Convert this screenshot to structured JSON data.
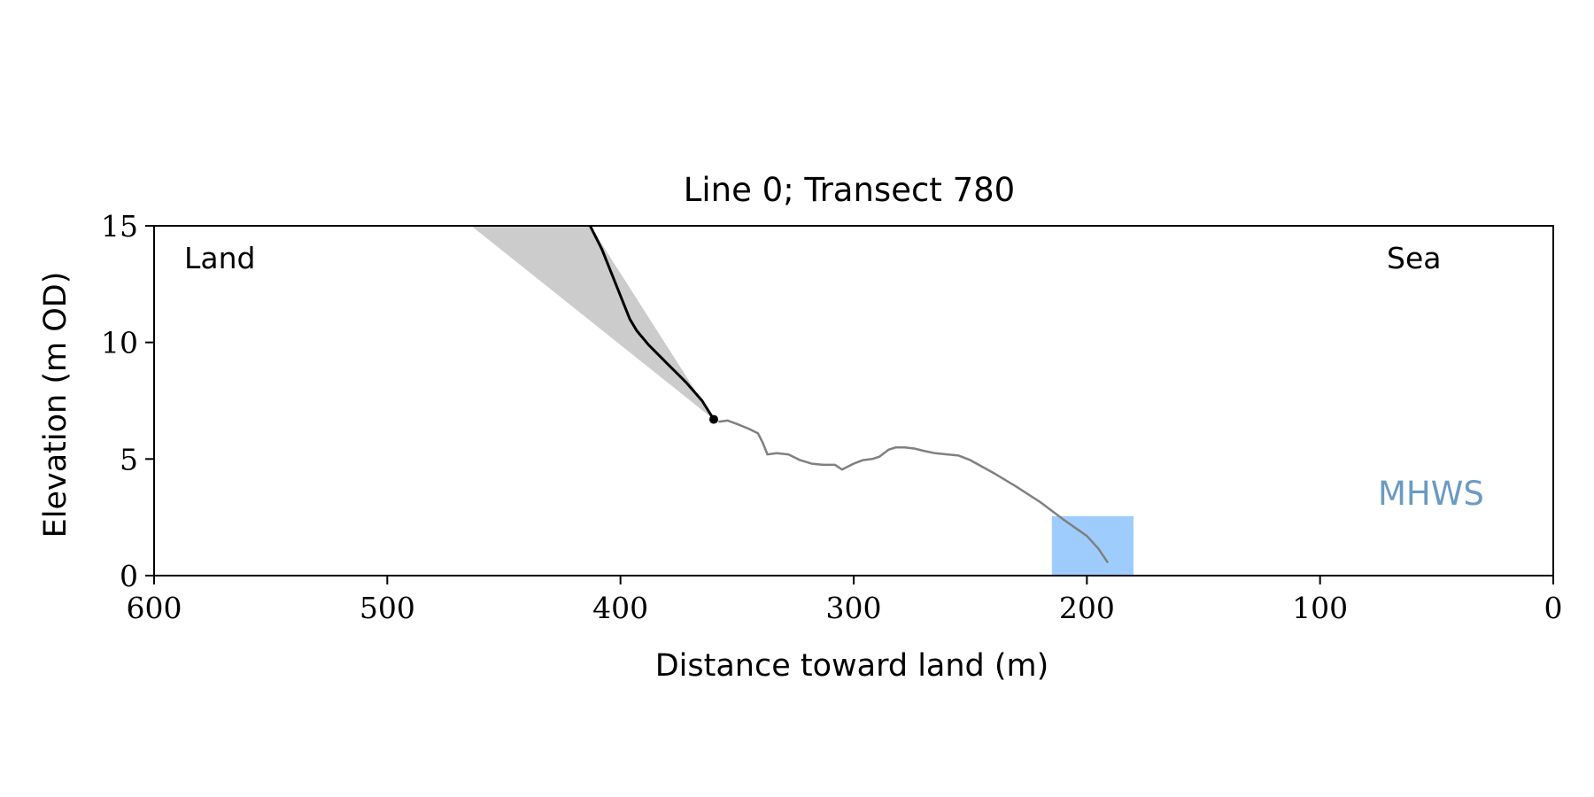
{
  "chart_data": {
    "type": "line",
    "title": "Line 0; Transect 780",
    "xlabel": "Distance toward land (m)",
    "ylabel": "Elevation (m OD)",
    "xlim": [
      600,
      0
    ],
    "ylim": [
      0,
      15
    ],
    "x_ticks": [
      600,
      500,
      400,
      300,
      200,
      100,
      0
    ],
    "y_ticks": [
      0,
      5,
      10,
      15
    ],
    "grid": false,
    "annotations": {
      "land_label": "Land",
      "sea_label": "Sea",
      "mhws_label": "MHWS"
    },
    "colors": {
      "profile": "#808080",
      "cliff": "#000000",
      "slope_fill": "#cccccc",
      "mhws_fill": "#9ecdfd",
      "mhws_text": "#6b9ac4",
      "axes": "#000000"
    },
    "series": [
      {
        "role": "profile",
        "x": [
          358,
          354,
          350,
          345,
          341,
          339,
          337,
          333,
          328,
          325,
          323,
          318,
          313,
          308,
          305,
          302,
          300,
          296,
          292,
          289,
          285,
          282,
          278,
          274,
          270,
          265,
          260,
          255,
          250,
          240,
          230,
          220,
          210,
          200,
          195,
          191
        ],
        "y": [
          6.6,
          6.65,
          6.5,
          6.3,
          6.1,
          5.7,
          5.2,
          5.25,
          5.2,
          5.05,
          4.95,
          4.8,
          4.75,
          4.75,
          4.55,
          4.7,
          4.8,
          4.95,
          5.0,
          5.1,
          5.4,
          5.5,
          5.5,
          5.45,
          5.35,
          5.25,
          5.2,
          5.15,
          4.95,
          4.4,
          3.8,
          3.15,
          2.4,
          1.7,
          1.15,
          0.55
        ]
      },
      {
        "role": "cliff",
        "x": [
          413,
          408,
          402,
          396,
          393,
          388,
          380,
          372,
          365,
          360
        ],
        "y": [
          15,
          14,
          12.5,
          11,
          10.5,
          9.9,
          9.1,
          8.3,
          7.5,
          6.7
        ]
      },
      {
        "role": "slope_wedge",
        "x": [
          464,
          413,
          360
        ],
        "y": [
          15,
          15,
          6.7
        ]
      },
      {
        "role": "cliff_toe",
        "x": [
          360
        ],
        "y": [
          6.7
        ]
      },
      {
        "role": "mhws_band",
        "x": [
          215,
          180
        ],
        "y": [
          0,
          2.55
        ]
      }
    ]
  }
}
